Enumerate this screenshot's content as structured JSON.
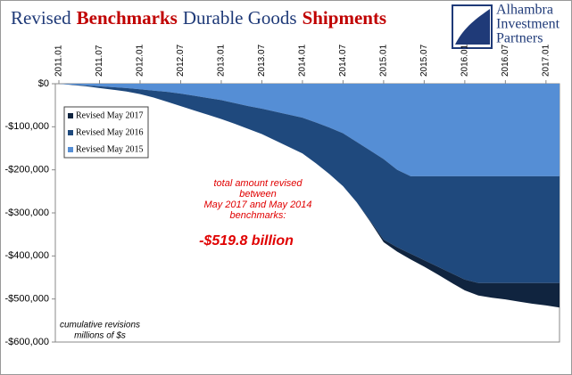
{
  "chart_data": {
    "type": "stacked-area",
    "title_parts": [
      {
        "text": "Revised",
        "color": "#1f3a78",
        "bold": false
      },
      {
        "text": "Benchmarks",
        "color": "#c00000",
        "bold": true
      },
      {
        "text": "Durable Goods",
        "color": "#1f3a78",
        "bold": false
      },
      {
        "text": "Shipments",
        "color": "#c00000",
        "bold": true
      }
    ],
    "logo_lines": [
      "Alhambra",
      "Investment",
      "Partners"
    ],
    "categories": [
      "2011.01",
      null,
      null,
      "2011.07",
      null,
      null,
      "2012.01",
      null,
      null,
      "2012.07",
      null,
      null,
      "2013.01",
      null,
      null,
      "2013.07",
      null,
      null,
      "2014.01",
      null,
      null,
      "2014.07",
      null,
      null,
      "2015.01",
      null,
      null,
      "2015.07",
      null,
      null,
      "2016.01",
      null,
      null,
      "2016.07",
      null,
      null,
      "2017.01",
      null
    ],
    "series": [
      {
        "name": "Revised May 2015",
        "color": "#558ed5",
        "values": [
          0,
          -2000,
          -4000,
          -6000,
          -8000,
          -10000,
          -13000,
          -16000,
          -19000,
          -23000,
          -28000,
          -33000,
          -38000,
          -45000,
          -52000,
          -58000,
          -65000,
          -72000,
          -79000,
          -90000,
          -102000,
          -115000,
          -135000,
          -155000,
          -175000,
          -200000,
          -215000,
          -215000,
          -215000,
          -215000,
          -215000,
          -215000,
          -215000,
          -215000,
          -215000,
          -215000,
          -215000,
          -215000
        ]
      },
      {
        "name": "Revised May 2016",
        "color": "#1f497d",
        "values": [
          0,
          -1000,
          -2000,
          -4000,
          -6000,
          -8000,
          -11000,
          -16000,
          -23000,
          -29000,
          -34000,
          -39000,
          -44000,
          -48000,
          -53000,
          -59000,
          -67000,
          -75000,
          -83000,
          -95000,
          -108000,
          -123000,
          -140000,
          -163000,
          -187000,
          -180000,
          -180000,
          -195000,
          -210000,
          -225000,
          -240000,
          -248000,
          -248000,
          -248000,
          -248000,
          -248000,
          -248000,
          -248000
        ]
      },
      {
        "name": "Revised May 2017",
        "color": "#10243f",
        "values": [
          0,
          0,
          0,
          0,
          0,
          0,
          0,
          0,
          0,
          0,
          0,
          0,
          0,
          0,
          0,
          0,
          0,
          0,
          0,
          0,
          0,
          0,
          0,
          -2000,
          -6000,
          -10000,
          -13000,
          -15000,
          -18000,
          -22000,
          -25000,
          -29000,
          -34000,
          -38000,
          -43000,
          -48000,
          -52000,
          -56800
        ]
      }
    ],
    "ylim": [
      -600000,
      0
    ],
    "yticks": [
      {
        "value": 0,
        "label": "$0"
      },
      {
        "value": -100000,
        "label": "-$100,000"
      },
      {
        "value": -200000,
        "label": "-$200,000"
      },
      {
        "value": -300000,
        "label": "-$300,000"
      },
      {
        "value": -400000,
        "label": "-$400,000"
      },
      {
        "value": -500000,
        "label": "-$500,000"
      },
      {
        "value": -600000,
        "label": "-$600,000"
      }
    ],
    "annotation_lines": [
      "total amount revised",
      "between",
      "May 2017 and May 2014",
      "benchmarks:"
    ],
    "annotation_total": "-$519.8 billion",
    "note_lines": [
      "cumulative revisions",
      "millions of $s"
    ]
  }
}
